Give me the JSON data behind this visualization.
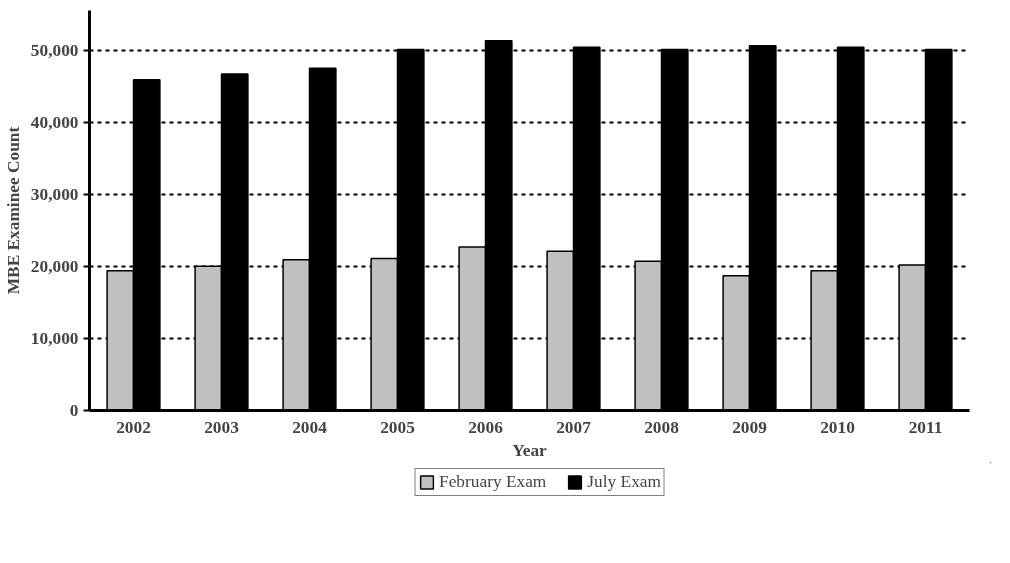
{
  "chart_data": {
    "type": "bar",
    "xlabel": "Year",
    "ylabel": "MBE Examinee Count",
    "categories": [
      "2002",
      "2003",
      "2004",
      "2005",
      "2006",
      "2007",
      "2008",
      "2009",
      "2010",
      "2011"
    ],
    "series": [
      {
        "name": "February Exam",
        "color": "#c0c0c0",
        "values": [
          19400,
          20000,
          20900,
          21100,
          22700,
          22100,
          20700,
          18700,
          19400,
          20200
        ]
      },
      {
        "name": "July Exam",
        "color": "#000000",
        "values": [
          45900,
          46700,
          47500,
          50100,
          51300,
          50400,
          50100,
          50600,
          50400,
          50100
        ]
      }
    ],
    "ylim": [
      0,
      55500
    ],
    "yticks": [
      {
        "value": 0,
        "label": "0"
      },
      {
        "value": 10000,
        "label": "10,000"
      },
      {
        "value": 20000,
        "label": "20,000"
      },
      {
        "value": 30000,
        "label": "30,000"
      },
      {
        "value": 40000,
        "label": "40,000"
      },
      {
        "value": 50000,
        "label": "50,000"
      }
    ],
    "grid": "y",
    "legend": "bottom"
  }
}
